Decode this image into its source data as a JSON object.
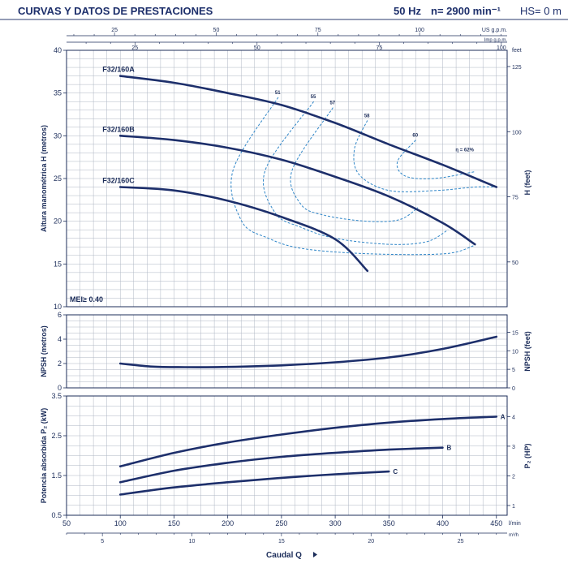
{
  "header": {
    "title": "CURVAS Y DATOS DE PRESTACIONES",
    "frequency": "50 Hz",
    "speed": "n= 2900 min⁻¹",
    "suction_height": "HS= 0 m"
  },
  "colors": {
    "curve": "#1d2f6b",
    "efficiency": "#2f86c8",
    "grid": "#aeb6c3",
    "text": "#1c2d5a"
  },
  "chart_data": [
    {
      "type": "line",
      "panel": "head",
      "ylabel": "Altura manométrica H  (metros)",
      "ylabel_right": "H (feet)",
      "xlim": [
        50,
        460
      ],
      "ylim": [
        10,
        40
      ],
      "yticks": [
        10,
        15,
        20,
        25,
        30,
        35,
        40
      ],
      "yticks_right": [
        50,
        75,
        100,
        125
      ],
      "yunit_right": "feet",
      "top_axis_us": {
        "unit": "US g.p.m.",
        "ticks": [
          25,
          50,
          75,
          100
        ]
      },
      "top_axis_imp": {
        "unit": "Imp g.p.m.",
        "ticks": [
          25,
          50,
          75,
          100
        ]
      },
      "annotation": "MEI≥ 0.40",
      "series": [
        {
          "name": "F32/160A",
          "x": [
            100,
            150,
            200,
            250,
            300,
            350,
            400,
            450
          ],
          "y": [
            37,
            36.2,
            35,
            33.6,
            31.5,
            29,
            26.6,
            24
          ]
        },
        {
          "name": "F32/160B",
          "x": [
            100,
            150,
            200,
            250,
            300,
            350,
            400,
            430
          ],
          "y": [
            30,
            29.5,
            28.6,
            27.2,
            25.2,
            22.9,
            19.8,
            17.3
          ]
        },
        {
          "name": "F32/160C",
          "x": [
            100,
            150,
            200,
            250,
            300,
            330
          ],
          "y": [
            24,
            23.6,
            22.4,
            20.5,
            17.9,
            14.2
          ]
        }
      ],
      "efficiency_curves": [
        {
          "label": "51",
          "x": [
            247,
            205,
            213,
            238,
            270,
            330,
            402,
            430
          ],
          "y": [
            34.5,
            26,
            20,
            18,
            16.8,
            16.2,
            16.2,
            17.2
          ]
        },
        {
          "label": "55",
          "x": [
            280,
            235,
            244,
            268,
            300,
            350,
            385,
            405
          ],
          "y": [
            34,
            26,
            21,
            19.3,
            18,
            17.3,
            17.6,
            19
          ]
        },
        {
          "label": "57",
          "x": [
            298,
            260,
            268,
            290,
            330,
            360,
            377
          ],
          "y": [
            33.3,
            26,
            22,
            20.7,
            20,
            20.2,
            21.6
          ]
        },
        {
          "label": "58",
          "x": [
            330,
            318,
            322,
            350,
            395,
            430,
            450
          ],
          "y": [
            31.8,
            28.5,
            25.5,
            23.6,
            23.6,
            24,
            24
          ]
        },
        {
          "label": "60",
          "x": [
            375,
            358,
            365,
            392,
            430
          ],
          "y": [
            29.5,
            27,
            25.3,
            25,
            25.8
          ]
        },
        {
          "label": "η = 62%",
          "x": [
            412
          ],
          "y": [
            27.8
          ]
        }
      ]
    },
    {
      "type": "line",
      "panel": "npsh",
      "ylabel": "NPSH  (metros)",
      "ylabel_right": "NPSH (feet)",
      "xlim": [
        50,
        460
      ],
      "ylim": [
        0,
        6
      ],
      "yticks": [
        0,
        2,
        4,
        6
      ],
      "yticks_right": [
        0,
        5,
        10,
        15
      ],
      "series": [
        {
          "name": "NPSH",
          "x": [
            100,
            130,
            160,
            200,
            250,
            300,
            350,
            400,
            450
          ],
          "y": [
            2.0,
            1.75,
            1.7,
            1.72,
            1.85,
            2.1,
            2.5,
            3.2,
            4.2
          ]
        }
      ]
    },
    {
      "type": "line",
      "panel": "power",
      "ylabel": "Potencia absorbida P₂ (kW)",
      "ylabel_right": "P₂ (HP)",
      "xlabel": "Caudal Q",
      "xlim": [
        50,
        460
      ],
      "ylim": [
        0.5,
        3.5
      ],
      "yticks": [
        0.5,
        1.5,
        2.5,
        3.5
      ],
      "yticks_right": [
        1,
        2,
        3,
        4
      ],
      "xticks": [
        50,
        100,
        150,
        200,
        250,
        300,
        350,
        400,
        450
      ],
      "xunit": "l/min",
      "x2ticks": [
        5,
        10,
        15,
        20,
        25
      ],
      "x2unit": "m³/h",
      "series": [
        {
          "name": "A",
          "x": [
            100,
            150,
            200,
            250,
            300,
            350,
            400,
            450
          ],
          "y": [
            1.73,
            2.07,
            2.33,
            2.53,
            2.7,
            2.83,
            2.92,
            2.98
          ]
        },
        {
          "name": "B",
          "x": [
            100,
            150,
            200,
            250,
            300,
            350,
            400
          ],
          "y": [
            1.33,
            1.62,
            1.82,
            1.97,
            2.07,
            2.15,
            2.2
          ]
        },
        {
          "name": "C",
          "x": [
            100,
            150,
            200,
            250,
            300,
            350
          ],
          "y": [
            1.02,
            1.2,
            1.33,
            1.44,
            1.53,
            1.6
          ]
        }
      ]
    }
  ]
}
